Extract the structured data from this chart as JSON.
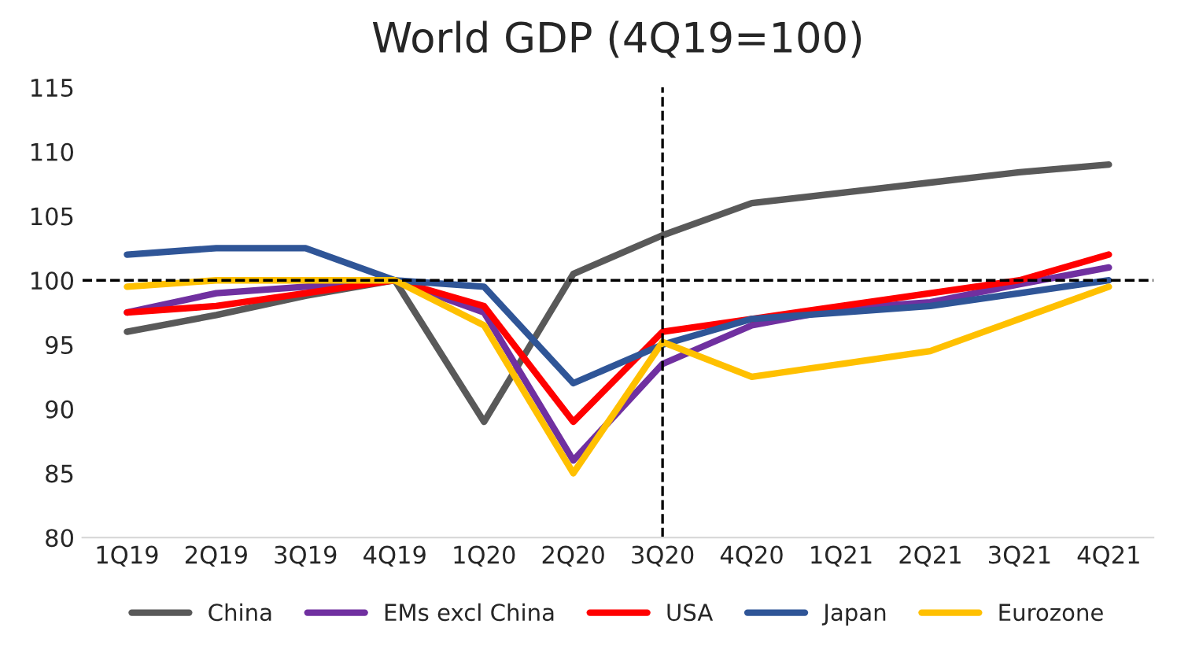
{
  "chart_data": {
    "type": "line",
    "title": "World GDP (4Q19=100)",
    "categories": [
      "1Q19",
      "2Q19",
      "3Q19",
      "4Q19",
      "1Q20",
      "2Q20",
      "3Q20",
      "4Q20",
      "1Q21",
      "2Q21",
      "3Q21",
      "4Q21"
    ],
    "series": [
      {
        "name": "China",
        "color": "#595959",
        "values": [
          96,
          97.3,
          98.8,
          100,
          89,
          100.5,
          103.5,
          106,
          106.8,
          107.6,
          108.4,
          109
        ]
      },
      {
        "name": "EMs excl China",
        "color": "#7030a0",
        "values": [
          97.5,
          99,
          99.5,
          100,
          97.5,
          86,
          93.5,
          96.5,
          97.8,
          98.3,
          99.7,
          101
        ]
      },
      {
        "name": "USA",
        "color": "#ff0000",
        "values": [
          97.5,
          98,
          99,
          100,
          98,
          89,
          96,
          97,
          98,
          99,
          100,
          102
        ]
      },
      {
        "name": "Japan",
        "color": "#2f5597",
        "values": [
          102,
          102.5,
          102.5,
          100,
          99.5,
          92,
          95,
          97,
          97.5,
          98,
          99,
          100
        ]
      },
      {
        "name": "Eurozone",
        "color": "#ffc000",
        "values": [
          99.5,
          100,
          100,
          100,
          96.5,
          85,
          95.2,
          92.5,
          93.5,
          94.5,
          97,
          99.5
        ]
      }
    ],
    "ylim": [
      80,
      115
    ],
    "yticks": [
      80,
      85,
      90,
      95,
      100,
      105,
      110,
      115
    ],
    "ref_lines": [
      {
        "axis": "y",
        "value": 100,
        "color": "#000000",
        "line_style": "dashed"
      },
      {
        "axis": "x",
        "value": "3Q20",
        "color": "#000000",
        "line_style": "dashed"
      }
    ],
    "grid": false,
    "legend": "bottom",
    "marker": "none",
    "line_style": "solid"
  }
}
